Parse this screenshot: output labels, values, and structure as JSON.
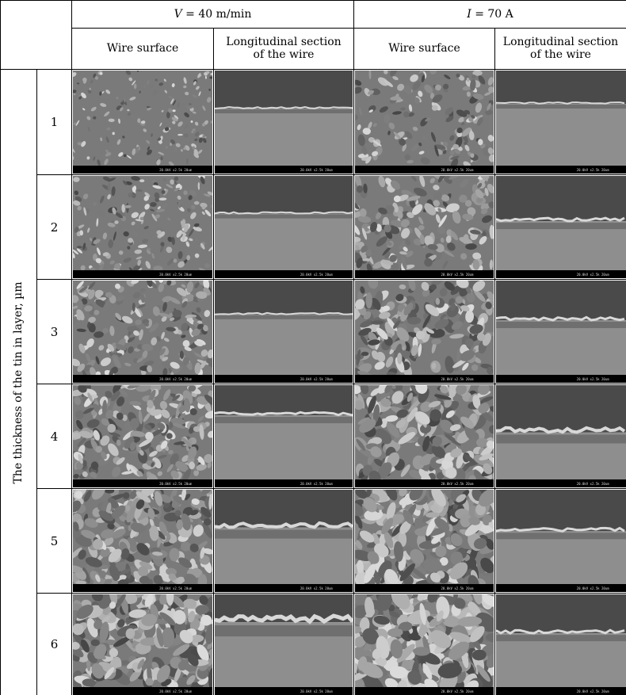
{
  "header": {
    "group_v": "V = 40 m/min",
    "group_v_symbol": "V",
    "group_v_rest": " = 40 m/min",
    "group_i": "I = 70 A",
    "group_i_symbol": "I",
    "group_i_rest": " = 70 A",
    "col_wire_surface": "Wire surface",
    "col_long_section_line1": "Longitudinal section",
    "col_long_section_line2": "of the wire"
  },
  "side_label": "The thickness of the tin in layer, µm",
  "rows": [
    {
      "label": "1"
    },
    {
      "label": "2"
    },
    {
      "label": "3"
    },
    {
      "label": "4"
    },
    {
      "label": "5"
    },
    {
      "label": "6"
    }
  ],
  "micrograph_caption": "20.0kV x2.5k 20um"
}
